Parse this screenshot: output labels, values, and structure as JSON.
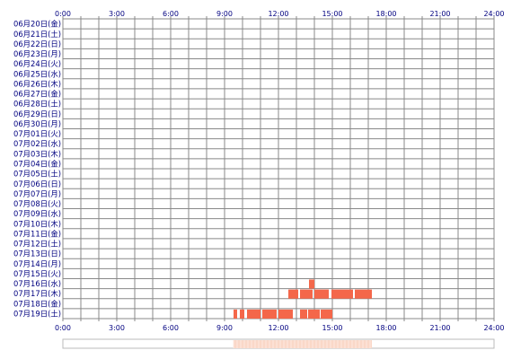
{
  "chart_data": {
    "type": "timeline",
    "title": "",
    "x_unit": "hour of day",
    "xlim": [
      0,
      24
    ],
    "x_ticks": [
      "0:00",
      "3:00",
      "6:00",
      "9:00",
      "12:00",
      "15:00",
      "18:00",
      "21:00",
      "24:00"
    ],
    "minor_grid_interval_hours": 1,
    "grid": true,
    "rows": [
      "06月20日(金)",
      "06月21日(土)",
      "06月22日(日)",
      "06月23日(月)",
      "06月24日(火)",
      "06月25日(水)",
      "06月26日(木)",
      "06月27日(金)",
      "06月28日(土)",
      "06月29日(日)",
      "06月30日(月)",
      "07月01日(火)",
      "07月02日(水)",
      "07月03日(木)",
      "07月04日(金)",
      "07月05日(土)",
      "07月06日(日)",
      "07月07日(月)",
      "07月08日(火)",
      "07月09日(水)",
      "07月10日(木)",
      "07月11日(金)",
      "07月12日(土)",
      "07月13日(日)",
      "07月14日(月)",
      "07月15日(火)",
      "07月16日(水)",
      "07月17日(木)",
      "07月18日(金)",
      "07月19日(土)"
    ],
    "activity": [
      {
        "row": 26,
        "segments": [
          [
            13.7,
            14.0
          ]
        ]
      },
      {
        "row": 27,
        "segments": [
          [
            12.55,
            13.1
          ],
          [
            13.2,
            13.9
          ],
          [
            14.0,
            14.8
          ],
          [
            14.95,
            16.15
          ],
          [
            16.25,
            17.2
          ]
        ]
      },
      {
        "row": 29,
        "segments": [
          [
            9.5,
            9.7
          ],
          [
            9.85,
            10.1
          ],
          [
            10.25,
            11.0
          ],
          [
            11.1,
            11.9
          ],
          [
            12.0,
            12.8
          ],
          [
            13.2,
            13.6
          ],
          [
            13.65,
            14.3
          ],
          [
            14.35,
            15.0
          ]
        ]
      }
    ],
    "bar_color": "#f4674a",
    "summary_strip": [
      [
        9.5,
        17.2
      ]
    ],
    "summary_color": "#fad8c8",
    "grid_color": "#888888"
  }
}
